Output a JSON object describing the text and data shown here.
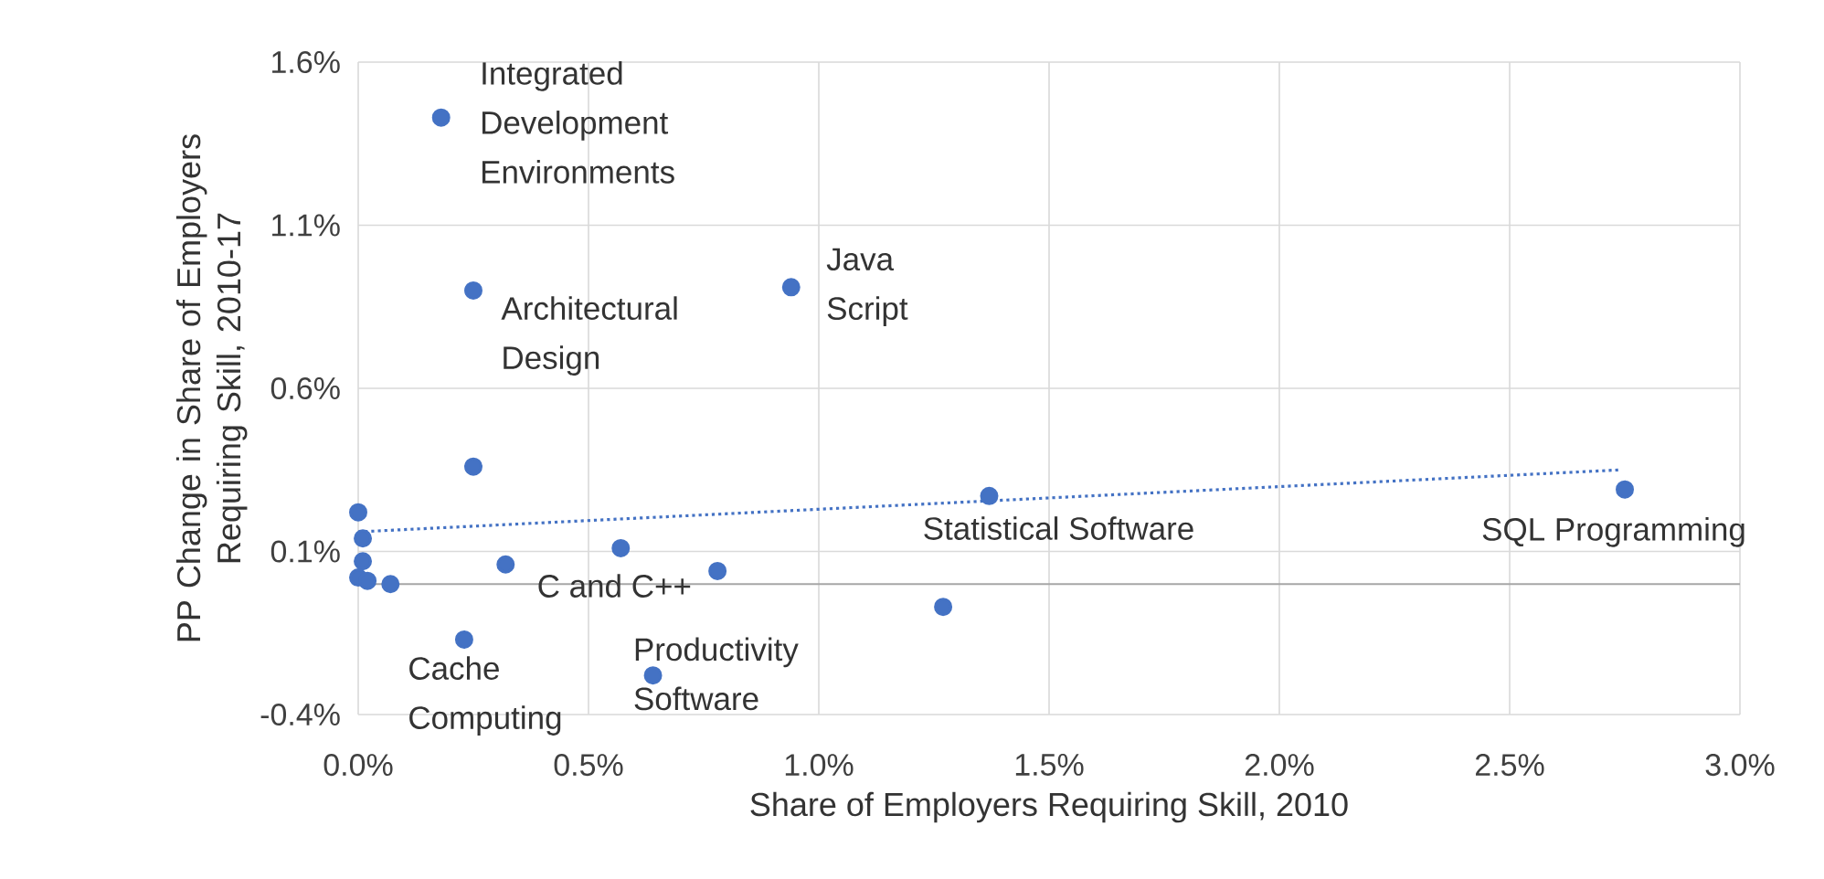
{
  "chart_data": {
    "type": "scatter",
    "xlabel": "Share of Employers Requiring Skill, 2010",
    "ylabel": "PP Change in Share of Employers Requiring Skill, 2010-17",
    "xlim": [
      0,
      3.0
    ],
    "ylim": [
      -0.4,
      1.6
    ],
    "xticks": [
      {
        "value": 0,
        "label": "0.0%"
      },
      {
        "value": 0.5,
        "label": "0.5%"
      },
      {
        "value": 1.0,
        "label": "1.0%"
      },
      {
        "value": 1.5,
        "label": "1.5%"
      },
      {
        "value": 2.0,
        "label": "2.0%"
      },
      {
        "value": 2.5,
        "label": "2.5%"
      },
      {
        "value": 3.0,
        "label": "3.0%"
      }
    ],
    "yticks": [
      {
        "value": -0.4,
        "label": "-0.4%"
      },
      {
        "value": 0.1,
        "label": "0.1%"
      },
      {
        "value": 0.6,
        "label": "0.6%"
      },
      {
        "value": 1.1,
        "label": "1.1%"
      },
      {
        "value": 1.6,
        "label": "1.6%"
      }
    ],
    "grid": true,
    "marker": "circle",
    "ref_lines": [
      {
        "axis": "y",
        "value": 0,
        "color": "#a6a6a6"
      }
    ],
    "series": [
      {
        "type": "scatter",
        "color": "#4472c4",
        "x": [
          0.18,
          0.25,
          0.94,
          0.25,
          1.37,
          2.75,
          0.57,
          0.32,
          0.78,
          1.27,
          0.23,
          0.64,
          0.0,
          0.01,
          0.01,
          0.0,
          0.02,
          0.07
        ],
        "values": [
          1.43,
          0.9,
          0.91,
          0.36,
          0.27,
          0.29,
          0.11,
          0.06,
          0.04,
          -0.07,
          -0.17,
          -0.28,
          0.22,
          0.14,
          0.07,
          0.02,
          0.01,
          0.0
        ]
      },
      {
        "type": "line",
        "color": "#4472c4",
        "line_style": "dotted",
        "marker": "none",
        "x": [
          0.0,
          2.74
        ],
        "values": [
          0.16,
          0.35
        ]
      }
    ],
    "annotations": [
      {
        "text": "Integrated Development Environments",
        "x": 0.18,
        "y": 1.43
      },
      {
        "text": "Architectural Design",
        "x": 0.25,
        "y": 0.9
      },
      {
        "text": "Java Script",
        "x": 0.94,
        "y": 0.91
      },
      {
        "text": "Statistical Software",
        "x": 1.37,
        "y": 0.27
      },
      {
        "text": "SQL Programming",
        "x": 2.75,
        "y": 0.29
      },
      {
        "text": "C and C++",
        "x": 0.32,
        "y": 0.06
      },
      {
        "text": "Cache Computing",
        "x": 0.23,
        "y": -0.17
      },
      {
        "text": "Productivity Software",
        "x": 0.64,
        "y": -0.28
      }
    ]
  }
}
